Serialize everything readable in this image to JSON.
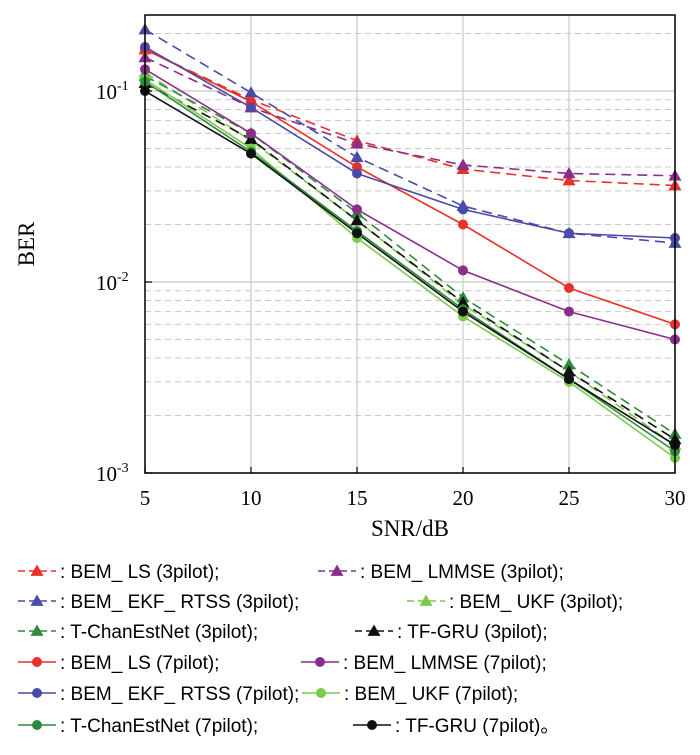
{
  "chart_data": {
    "type": "line",
    "title": "",
    "xlabel": "SNR/dB",
    "ylabel": "BER",
    "xlim": [
      5,
      30
    ],
    "ylim": [
      0.001,
      0.25
    ],
    "yscale": "log",
    "grid": true,
    "x": [
      5,
      10,
      15,
      20,
      25,
      30
    ],
    "x_tick_labels": [
      "5",
      "10",
      "15",
      "20",
      "25",
      "30"
    ],
    "y_tick_labels": [
      {
        "base": "10",
        "exp": "-1",
        "value": 0.1
      },
      {
        "base": "10",
        "exp": "-2",
        "value": 0.01
      },
      {
        "base": "10",
        "exp": "-3",
        "value": 0.001
      }
    ],
    "legend_placement": "below",
    "series": [
      {
        "name": "BEM_ LS (3pilot);",
        "color": "#e8312a",
        "style": "dashed",
        "marker": "triangle",
        "values": [
          0.165,
          0.09,
          0.055,
          0.039,
          0.034,
          0.032
        ]
      },
      {
        "name": "BEM_ LMMSE (3pilot);",
        "color": "#8b2d8b",
        "style": "dashed",
        "marker": "triangle",
        "values": [
          0.15,
          0.082,
          0.053,
          0.041,
          0.037,
          0.036
        ]
      },
      {
        "name": "BEM_ EKF_ RTSS (3pilot);",
        "color": "#4a4aa8",
        "style": "dashed",
        "marker": "triangle",
        "values": [
          0.21,
          0.098,
          0.045,
          0.025,
          0.018,
          0.016
        ]
      },
      {
        "name": "BEM_ UKF (3pilot);",
        "color": "#7dc94a",
        "style": "dashed",
        "marker": "triangle",
        "values": [
          0.125,
          0.055,
          0.021,
          0.0076,
          0.0034,
          0.0014
        ]
      },
      {
        "name": "T-ChanEstNet (3pilot);",
        "color": "#2e8b3e",
        "style": "dashed",
        "marker": "triangle",
        "values": [
          0.12,
          0.06,
          0.023,
          0.0083,
          0.0037,
          0.0016
        ]
      },
      {
        "name": "TF-GRU (3pilot);",
        "color": "#111111",
        "style": "dashed",
        "marker": "triangle",
        "values": [
          0.11,
          0.056,
          0.021,
          0.0078,
          0.0034,
          0.0015
        ]
      },
      {
        "name": "BEM_ LS (7pilot);",
        "color": "#e8312a",
        "style": "solid",
        "marker": "circle",
        "values": [
          0.165,
          0.088,
          0.04,
          0.02,
          0.0093,
          0.006
        ]
      },
      {
        "name": "BEM_ LMMSE (7pilot);",
        "color": "#8b2d8b",
        "style": "solid",
        "marker": "circle",
        "values": [
          0.13,
          0.06,
          0.024,
          0.0115,
          0.007,
          0.005
        ]
      },
      {
        "name": "BEM_ EKF_ RTSS (7pilot);",
        "color": "#4a4aa8",
        "style": "solid",
        "marker": "circle",
        "values": [
          0.17,
          0.082,
          0.037,
          0.024,
          0.018,
          0.017
        ]
      },
      {
        "name": "BEM_ UKF (7pilot);",
        "color": "#7dc94a",
        "style": "solid",
        "marker": "circle",
        "values": [
          0.115,
          0.05,
          0.017,
          0.0066,
          0.003,
          0.0012
        ]
      },
      {
        "name": "T-ChanEstNet (7pilot);",
        "color": "#2e8b3e",
        "style": "solid",
        "marker": "circle",
        "values": [
          0.112,
          0.048,
          0.0185,
          0.0072,
          0.0031,
          0.0013
        ]
      },
      {
        "name": "TF-GRU (7pilot)。",
        "color": "#111111",
        "style": "solid",
        "marker": "circle",
        "values": [
          0.1,
          0.047,
          0.018,
          0.007,
          0.0031,
          0.0014
        ]
      }
    ]
  }
}
